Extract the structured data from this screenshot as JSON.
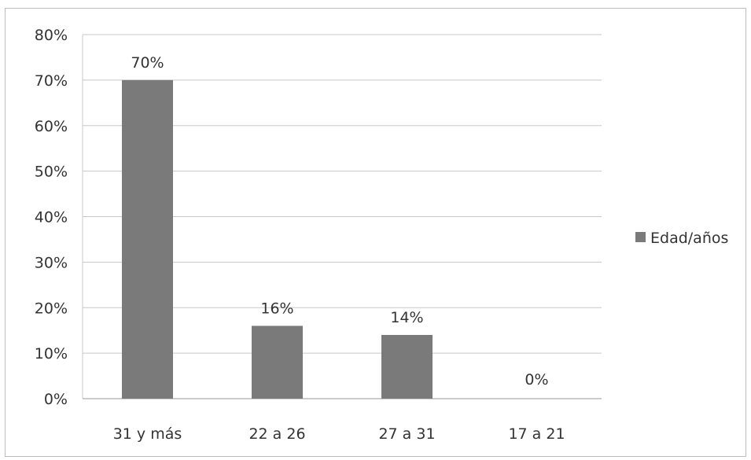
{
  "chart_data": {
    "type": "bar",
    "categories": [
      "31 y más",
      "22 a 26",
      "27 a 31",
      "17 a 21"
    ],
    "series": [
      {
        "name": "Edad/años",
        "values": [
          70,
          16,
          14,
          0
        ]
      }
    ],
    "data_labels": [
      "70%",
      "16%",
      "14%",
      "0%"
    ],
    "y_ticks": [
      "0%",
      "10%",
      "20%",
      "30%",
      "40%",
      "50%",
      "60%",
      "70%",
      "80%"
    ],
    "ylim": [
      0,
      80
    ],
    "grid": true,
    "legend_position": "right",
    "bar_color": "#7a7a7a"
  }
}
